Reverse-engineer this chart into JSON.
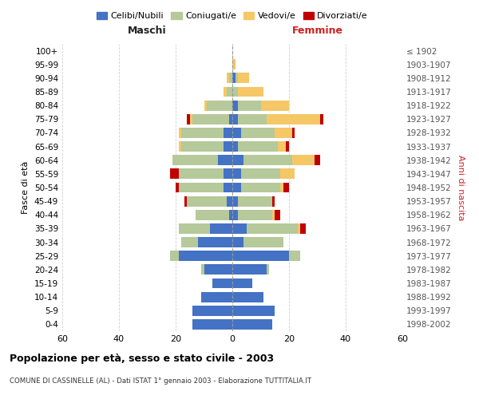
{
  "age_groups": [
    "0-4",
    "5-9",
    "10-14",
    "15-19",
    "20-24",
    "25-29",
    "30-34",
    "35-39",
    "40-44",
    "45-49",
    "50-54",
    "55-59",
    "60-64",
    "65-69",
    "70-74",
    "75-79",
    "80-84",
    "85-89",
    "90-94",
    "95-99",
    "100+"
  ],
  "birth_years": [
    "1998-2002",
    "1993-1997",
    "1988-1992",
    "1983-1987",
    "1978-1982",
    "1973-1977",
    "1968-1972",
    "1963-1967",
    "1958-1962",
    "1953-1957",
    "1948-1952",
    "1943-1947",
    "1938-1942",
    "1933-1937",
    "1928-1932",
    "1923-1927",
    "1918-1922",
    "1913-1917",
    "1908-1912",
    "1903-1907",
    "≤ 1902"
  ],
  "males": {
    "celibi": [
      14,
      14,
      11,
      7,
      10,
      19,
      12,
      8,
      1,
      2,
      3,
      3,
      5,
      3,
      3,
      1,
      0,
      0,
      0,
      0,
      0
    ],
    "coniugati": [
      0,
      0,
      0,
      0,
      1,
      3,
      6,
      11,
      12,
      14,
      16,
      16,
      16,
      15,
      15,
      13,
      9,
      2,
      1,
      0,
      0
    ],
    "vedovi": [
      0,
      0,
      0,
      0,
      0,
      0,
      0,
      0,
      0,
      0,
      0,
      0,
      0,
      1,
      1,
      1,
      1,
      1,
      1,
      0,
      0
    ],
    "divorziati": [
      0,
      0,
      0,
      0,
      0,
      0,
      0,
      0,
      0,
      1,
      1,
      3,
      0,
      0,
      0,
      1,
      0,
      0,
      0,
      0,
      0
    ]
  },
  "females": {
    "nubili": [
      14,
      15,
      11,
      7,
      12,
      20,
      4,
      5,
      2,
      2,
      3,
      3,
      4,
      2,
      3,
      2,
      2,
      0,
      1,
      0,
      0
    ],
    "coniugate": [
      0,
      0,
      0,
      0,
      1,
      4,
      14,
      18,
      12,
      12,
      14,
      14,
      17,
      14,
      12,
      10,
      8,
      2,
      1,
      0,
      0
    ],
    "vedove": [
      0,
      0,
      0,
      0,
      0,
      0,
      0,
      1,
      1,
      0,
      1,
      5,
      8,
      3,
      6,
      19,
      10,
      9,
      4,
      1,
      0
    ],
    "divorziate": [
      0,
      0,
      0,
      0,
      0,
      0,
      0,
      2,
      2,
      1,
      2,
      0,
      2,
      1,
      1,
      1,
      0,
      0,
      0,
      0,
      0
    ]
  },
  "colors": {
    "celibi": "#4472c4",
    "coniugati": "#b5c99a",
    "vedovi": "#f5c766",
    "divorziati": "#c00000"
  },
  "title": "Popolazione per età, sesso e stato civile - 2003",
  "subtitle": "COMUNE DI CASSINELLE (AL) - Dati ISTAT 1° gennaio 2003 - Elaborazione TUTTITALIA.IT",
  "ylabel_left": "Fasce di età",
  "ylabel_right": "Anni di nascita",
  "xlabel_left": "Maschi",
  "xlabel_right": "Femmine",
  "xlim": 60,
  "legend_labels": [
    "Celibi/Nubili",
    "Coniugati/e",
    "Vedovi/e",
    "Divorziati/e"
  ],
  "bg_color": "#ffffff",
  "grid_color": "#bbbbbb"
}
